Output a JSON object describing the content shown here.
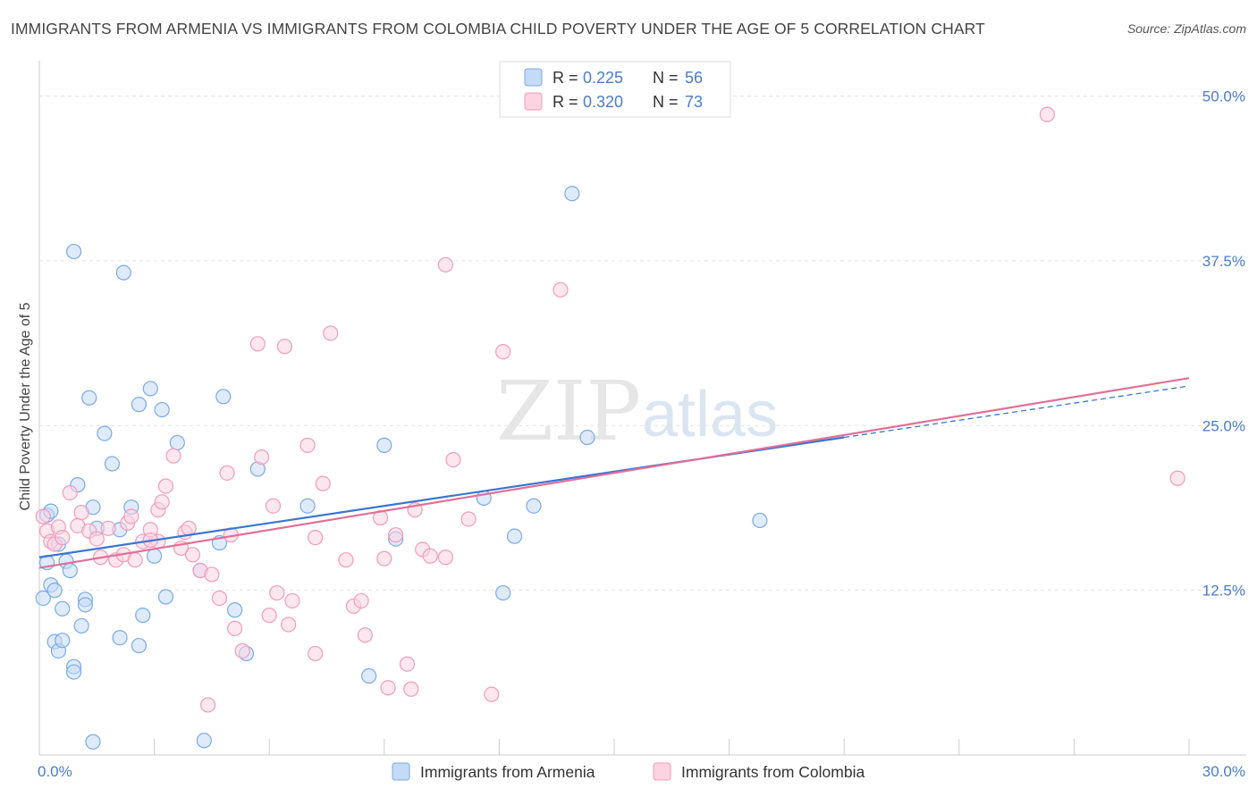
{
  "title": "IMMIGRANTS FROM ARMENIA VS IMMIGRANTS FROM COLOMBIA CHILD POVERTY UNDER THE AGE OF 5 CORRELATION CHART",
  "source": "Source: ZipAtlas.com",
  "watermark": {
    "zip": "ZIP",
    "atlas": "atlas"
  },
  "legend_stats": {
    "armenia": {
      "r_label": "R =",
      "r_value": "0.225",
      "n_label": "N =",
      "n_value": "56"
    },
    "colombia": {
      "r_label": "R =",
      "r_value": "0.320",
      "n_label": "N =",
      "n_value": "73"
    }
  },
  "colors": {
    "armenia": "#7aaae8",
    "armenia_line": "#3a76d0",
    "colombia": "#f29bb8",
    "colombia_line": "#e07099",
    "axis_text": "#4a7cc9",
    "grid": "#e3e3e3"
  },
  "chart_data": {
    "type": "scatter",
    "xlabel": "",
    "ylabel": "Child Poverty Under the Age of 5",
    "xlim": [
      0,
      30
    ],
    "ylim": [
      0,
      52
    ],
    "x_tick_labels": [
      "0.0%",
      "30.0%"
    ],
    "y_ticks": [
      12.5,
      25.0,
      37.5,
      50.0
    ],
    "y_tick_labels": [
      "12.5%",
      "25.0%",
      "37.5%",
      "50.0%"
    ],
    "series": [
      {
        "name": "Immigrants from Armenia",
        "r": 0.225,
        "n": 56,
        "trend": {
          "x0": 0,
          "y0": 15.0,
          "x1": 30,
          "y1": 28.0
        },
        "points": [
          [
            0.2,
            18.2
          ],
          [
            0.3,
            12.9
          ],
          [
            0.2,
            14.6
          ],
          [
            0.1,
            11.9
          ],
          [
            0.4,
            12.5
          ],
          [
            0.3,
            18.5
          ],
          [
            0.5,
            16.0
          ],
          [
            0.6,
            11.1
          ],
          [
            0.7,
            14.7
          ],
          [
            0.8,
            14.0
          ],
          [
            1.0,
            20.5
          ],
          [
            0.9,
            38.2
          ],
          [
            1.3,
            27.1
          ],
          [
            1.4,
            18.8
          ],
          [
            1.5,
            17.2
          ],
          [
            1.7,
            24.4
          ],
          [
            1.9,
            22.1
          ],
          [
            2.2,
            36.6
          ],
          [
            2.4,
            18.8
          ],
          [
            2.6,
            26.6
          ],
          [
            2.1,
            17.1
          ],
          [
            2.9,
            27.8
          ],
          [
            3.2,
            26.2
          ],
          [
            3.0,
            15.1
          ],
          [
            3.6,
            23.7
          ],
          [
            3.3,
            12.0
          ],
          [
            1.1,
            9.8
          ],
          [
            0.4,
            8.6
          ],
          [
            0.5,
            7.9
          ],
          [
            0.6,
            8.7
          ],
          [
            0.9,
            6.7
          ],
          [
            0.9,
            6.3
          ],
          [
            1.2,
            11.8
          ],
          [
            1.2,
            11.4
          ],
          [
            2.1,
            8.9
          ],
          [
            2.6,
            8.3
          ],
          [
            2.7,
            10.6
          ],
          [
            4.2,
            14.0
          ],
          [
            4.8,
            27.2
          ],
          [
            4.7,
            16.1
          ],
          [
            5.7,
            21.7
          ],
          [
            5.1,
            11.0
          ],
          [
            5.4,
            7.7
          ],
          [
            7.0,
            18.9
          ],
          [
            9.0,
            23.5
          ],
          [
            9.3,
            16.4
          ],
          [
            8.6,
            6.0
          ],
          [
            11.6,
            19.5
          ],
          [
            12.1,
            12.3
          ],
          [
            12.4,
            16.6
          ],
          [
            12.9,
            18.9
          ],
          [
            13.9,
            42.6
          ],
          [
            14.3,
            24.1
          ],
          [
            18.8,
            17.8
          ],
          [
            1.4,
            1.0
          ],
          [
            4.3,
            1.1
          ]
        ]
      },
      {
        "name": "Immigrants from Colombia",
        "r": 0.32,
        "n": 73,
        "trend": {
          "x0": 0,
          "y0": 14.2,
          "x1": 30,
          "y1": 28.6
        },
        "points": [
          [
            0.1,
            18.1
          ],
          [
            0.2,
            17.0
          ],
          [
            0.3,
            16.2
          ],
          [
            0.4,
            16.0
          ],
          [
            0.5,
            17.3
          ],
          [
            0.6,
            16.5
          ],
          [
            0.8,
            19.9
          ],
          [
            1.0,
            17.4
          ],
          [
            1.1,
            18.4
          ],
          [
            1.3,
            17.0
          ],
          [
            1.5,
            16.4
          ],
          [
            1.6,
            15.0
          ],
          [
            1.8,
            17.2
          ],
          [
            2.0,
            14.8
          ],
          [
            2.2,
            15.2
          ],
          [
            2.3,
            17.6
          ],
          [
            2.4,
            18.1
          ],
          [
            2.5,
            14.8
          ],
          [
            2.7,
            16.2
          ],
          [
            2.9,
            17.1
          ],
          [
            3.1,
            18.6
          ],
          [
            3.1,
            16.2
          ],
          [
            3.2,
            19.2
          ],
          [
            3.3,
            20.4
          ],
          [
            3.5,
            22.7
          ],
          [
            3.7,
            15.7
          ],
          [
            3.8,
            16.9
          ],
          [
            3.9,
            17.2
          ],
          [
            4.0,
            15.2
          ],
          [
            4.2,
            14.0
          ],
          [
            4.5,
            13.7
          ],
          [
            4.7,
            11.9
          ],
          [
            4.9,
            21.4
          ],
          [
            5.0,
            16.7
          ],
          [
            5.1,
            9.6
          ],
          [
            5.3,
            7.9
          ],
          [
            5.7,
            31.2
          ],
          [
            5.8,
            22.6
          ],
          [
            6.0,
            10.6
          ],
          [
            6.1,
            18.9
          ],
          [
            6.2,
            12.3
          ],
          [
            6.4,
            31.0
          ],
          [
            6.5,
            9.9
          ],
          [
            6.6,
            11.7
          ],
          [
            7.0,
            23.5
          ],
          [
            7.2,
            16.5
          ],
          [
            7.4,
            20.6
          ],
          [
            7.6,
            32.0
          ],
          [
            8.0,
            14.8
          ],
          [
            8.2,
            11.3
          ],
          [
            8.4,
            11.7
          ],
          [
            8.5,
            9.1
          ],
          [
            8.9,
            18.0
          ],
          [
            9.0,
            14.9
          ],
          [
            9.1,
            5.1
          ],
          [
            9.3,
            16.7
          ],
          [
            9.6,
            6.9
          ],
          [
            9.7,
            5.0
          ],
          [
            9.8,
            18.6
          ],
          [
            10.0,
            15.6
          ],
          [
            10.2,
            15.1
          ],
          [
            10.6,
            15.0
          ],
          [
            10.8,
            22.4
          ],
          [
            10.6,
            37.2
          ],
          [
            11.2,
            17.9
          ],
          [
            11.8,
            4.6
          ],
          [
            12.1,
            30.6
          ],
          [
            13.6,
            35.3
          ],
          [
            26.3,
            48.6
          ],
          [
            29.7,
            21.0
          ],
          [
            7.2,
            7.7
          ],
          [
            4.4,
            3.8
          ],
          [
            2.9,
            16.3
          ]
        ]
      }
    ]
  },
  "legend": {
    "armenia_label": "Immigrants from Armenia",
    "colombia_label": "Immigrants from Colombia"
  }
}
